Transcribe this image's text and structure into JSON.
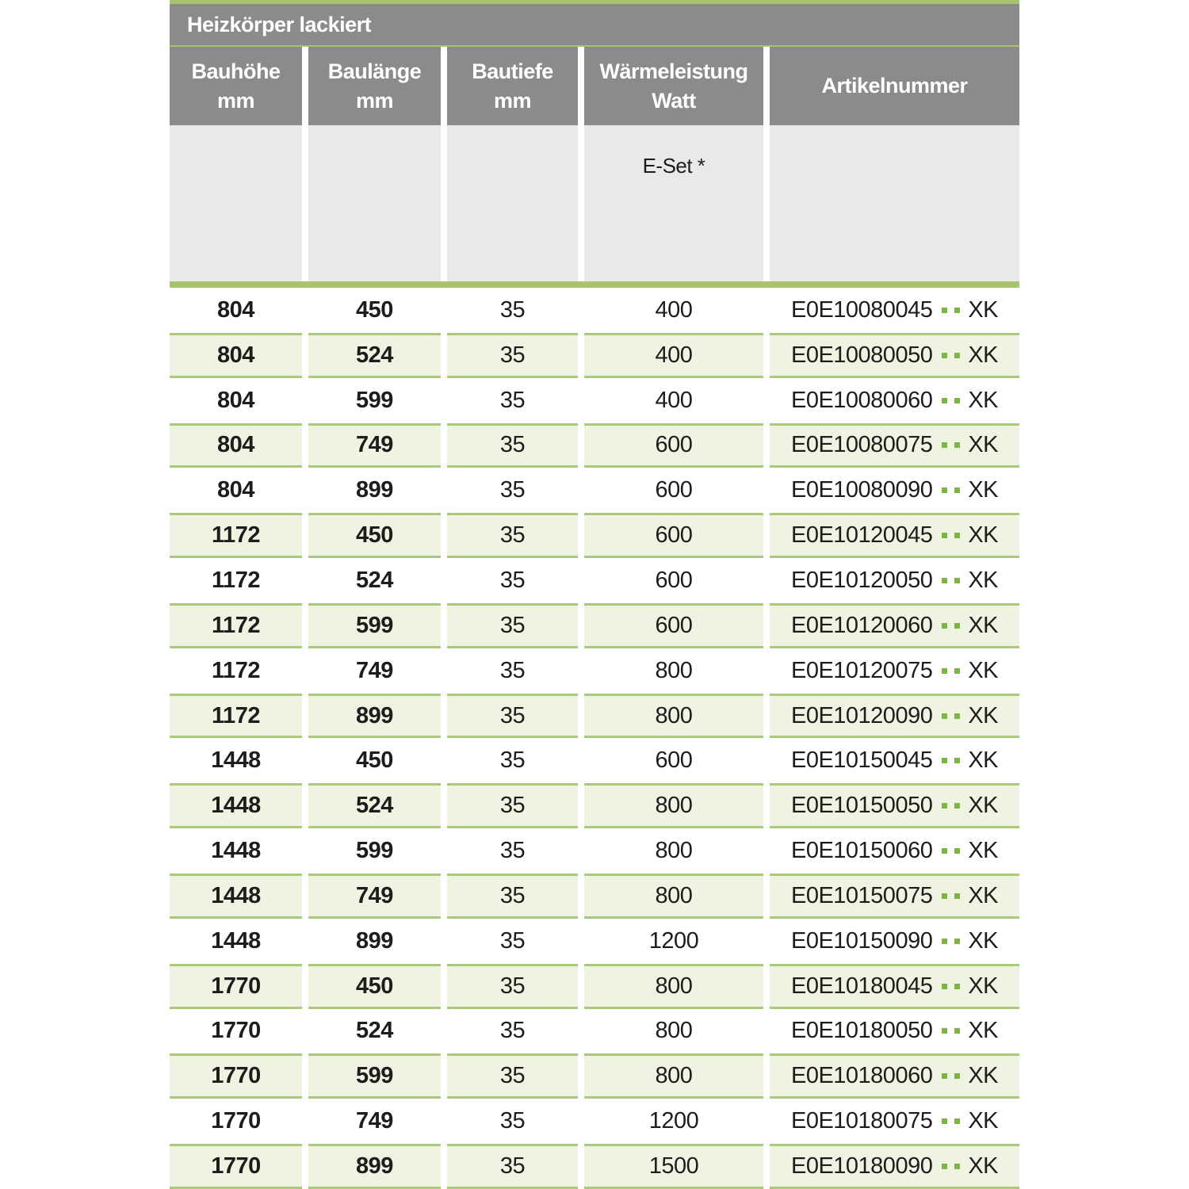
{
  "colors": {
    "header_gray": "#8b8b8b",
    "subheader_gray": "#e9e9e9",
    "line_green": "#a6c46e",
    "row_green_bg": "#eff3e2",
    "row_border_green": "#abc97c",
    "dot_green": "#7cb544",
    "text_dark": "#1d1d1b",
    "header_text": "#ffffff"
  },
  "table": {
    "title": "Heizkörper lackiert",
    "columns": [
      {
        "line1": "Bauhöhe",
        "line2": "mm"
      },
      {
        "line1": "Baulänge",
        "line2": "mm"
      },
      {
        "line1": "Bautiefe",
        "line2": "mm"
      },
      {
        "line1": "Wärmeleistung",
        "line2": "Watt"
      },
      {
        "line1": "Artikelnummer",
        "line2": ""
      }
    ],
    "subheader": {
      "eset_label": "E-Set *"
    },
    "rows": [
      {
        "bauhoehe": "804",
        "baulaenge": "450",
        "bautiefe": "35",
        "watt": "400",
        "artikel_prefix": "E0E10080045",
        "artikel_suffix": "XK"
      },
      {
        "bauhoehe": "804",
        "baulaenge": "524",
        "bautiefe": "35",
        "watt": "400",
        "artikel_prefix": "E0E10080050",
        "artikel_suffix": "XK"
      },
      {
        "bauhoehe": "804",
        "baulaenge": "599",
        "bautiefe": "35",
        "watt": "400",
        "artikel_prefix": "E0E10080060",
        "artikel_suffix": "XK"
      },
      {
        "bauhoehe": "804",
        "baulaenge": "749",
        "bautiefe": "35",
        "watt": "600",
        "artikel_prefix": "E0E10080075",
        "artikel_suffix": "XK"
      },
      {
        "bauhoehe": "804",
        "baulaenge": "899",
        "bautiefe": "35",
        "watt": "600",
        "artikel_prefix": "E0E10080090",
        "artikel_suffix": "XK"
      },
      {
        "bauhoehe": "1172",
        "baulaenge": "450",
        "bautiefe": "35",
        "watt": "600",
        "artikel_prefix": "E0E10120045",
        "artikel_suffix": "XK"
      },
      {
        "bauhoehe": "1172",
        "baulaenge": "524",
        "bautiefe": "35",
        "watt": "600",
        "artikel_prefix": "E0E10120050",
        "artikel_suffix": "XK"
      },
      {
        "bauhoehe": "1172",
        "baulaenge": "599",
        "bautiefe": "35",
        "watt": "600",
        "artikel_prefix": "E0E10120060",
        "artikel_suffix": "XK"
      },
      {
        "bauhoehe": "1172",
        "baulaenge": "749",
        "bautiefe": "35",
        "watt": "800",
        "artikel_prefix": "E0E10120075",
        "artikel_suffix": "XK"
      },
      {
        "bauhoehe": "1172",
        "baulaenge": "899",
        "bautiefe": "35",
        "watt": "800",
        "artikel_prefix": "E0E10120090",
        "artikel_suffix": "XK"
      },
      {
        "bauhoehe": "1448",
        "baulaenge": "450",
        "bautiefe": "35",
        "watt": "600",
        "artikel_prefix": "E0E10150045",
        "artikel_suffix": "XK"
      },
      {
        "bauhoehe": "1448",
        "baulaenge": "524",
        "bautiefe": "35",
        "watt": "800",
        "artikel_prefix": "E0E10150050",
        "artikel_suffix": "XK"
      },
      {
        "bauhoehe": "1448",
        "baulaenge": "599",
        "bautiefe": "35",
        "watt": "800",
        "artikel_prefix": "E0E10150060",
        "artikel_suffix": "XK"
      },
      {
        "bauhoehe": "1448",
        "baulaenge": "749",
        "bautiefe": "35",
        "watt": "800",
        "artikel_prefix": "E0E10150075",
        "artikel_suffix": "XK"
      },
      {
        "bauhoehe": "1448",
        "baulaenge": "899",
        "bautiefe": "35",
        "watt": "1200",
        "artikel_prefix": "E0E10150090",
        "artikel_suffix": "XK"
      },
      {
        "bauhoehe": "1770",
        "baulaenge": "450",
        "bautiefe": "35",
        "watt": "800",
        "artikel_prefix": "E0E10180045",
        "artikel_suffix": "XK"
      },
      {
        "bauhoehe": "1770",
        "baulaenge": "524",
        "bautiefe": "35",
        "watt": "800",
        "artikel_prefix": "E0E10180050",
        "artikel_suffix": "XK"
      },
      {
        "bauhoehe": "1770",
        "baulaenge": "599",
        "bautiefe": "35",
        "watt": "800",
        "artikel_prefix": "E0E10180060",
        "artikel_suffix": "XK"
      },
      {
        "bauhoehe": "1770",
        "baulaenge": "749",
        "bautiefe": "35",
        "watt": "1200",
        "artikel_prefix": "E0E10180075",
        "artikel_suffix": "XK"
      },
      {
        "bauhoehe": "1770",
        "baulaenge": "899",
        "bautiefe": "35",
        "watt": "1500",
        "artikel_prefix": "E0E10180090",
        "artikel_suffix": "XK"
      }
    ]
  }
}
